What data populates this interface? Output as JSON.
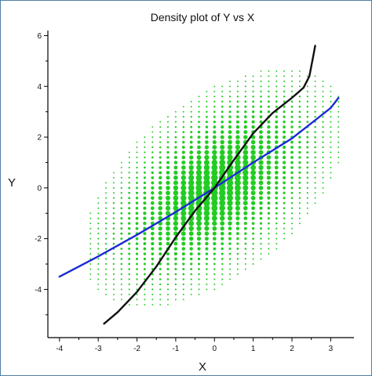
{
  "chart_data": {
    "type": "scatter",
    "title": "Density plot of Y vs X",
    "xlabel": "X",
    "ylabel": "Y",
    "xlim": [
      -4.3,
      3.6
    ],
    "ylim": [
      -5.9,
      6.2
    ],
    "x_ticks": [
      -4,
      -3,
      -2,
      -1,
      0,
      1,
      2,
      3
    ],
    "y_ticks": [
      -4,
      -2,
      0,
      2,
      4,
      6
    ],
    "grid": false,
    "legend": "none",
    "point_color": "#22cc22",
    "density_cloud": {
      "grid_step": 0.2,
      "center": [
        0,
        0
      ],
      "cov": [
        [
          1,
          0.71
        ],
        [
          0.71,
          1.9
        ]
      ],
      "extent_sigma": 3.4
    },
    "series": [
      {
        "kind": "regression_line",
        "color": "#1a2ad6",
        "x": [
          -4.0,
          -3.0,
          -2.0,
          -1.0,
          0.0,
          1.0,
          2.0,
          3.0,
          3.2
        ],
        "y": [
          -3.5,
          -2.7,
          -1.85,
          -0.95,
          0.0,
          1.0,
          1.95,
          3.15,
          3.55
        ]
      },
      {
        "kind": "regression_line",
        "color": "#111111",
        "x": [
          -2.85,
          -2.5,
          -2.0,
          -1.5,
          -1.0,
          -0.5,
          0.0,
          0.5,
          1.0,
          1.5,
          2.0,
          2.3,
          2.45,
          2.55,
          2.6
        ],
        "y": [
          -5.35,
          -4.9,
          -4.1,
          -3.1,
          -1.95,
          -0.9,
          0.0,
          1.1,
          2.15,
          2.95,
          3.55,
          3.95,
          4.4,
          5.2,
          5.6
        ]
      }
    ]
  }
}
